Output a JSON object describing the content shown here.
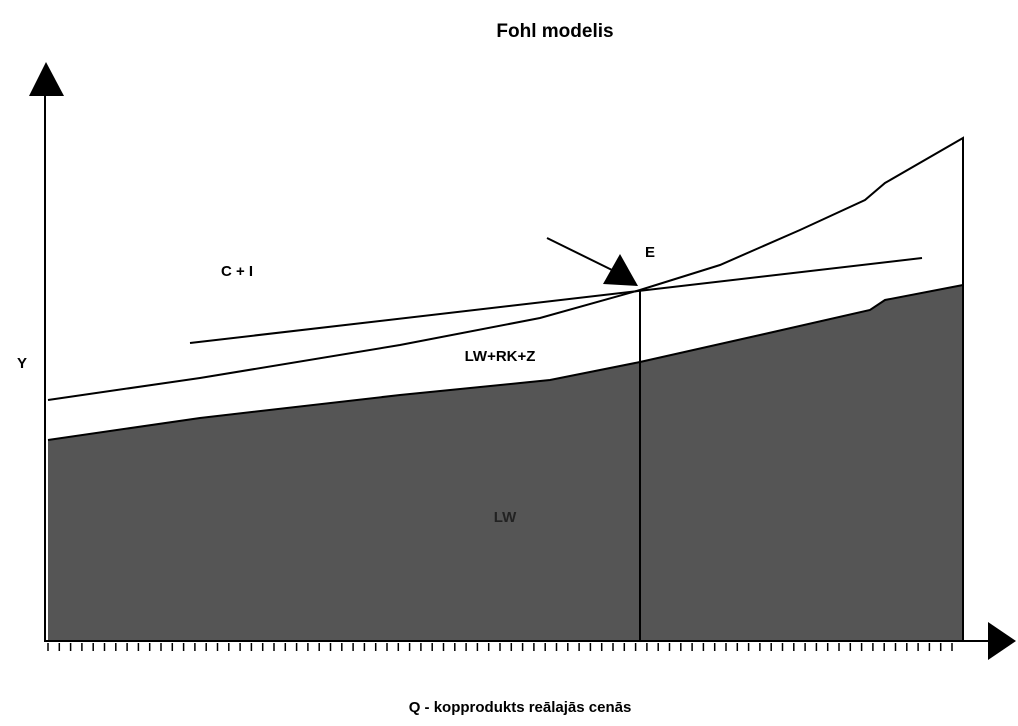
{
  "title": "Fohl modelis",
  "labels": {
    "y_axis": "Y",
    "x_axis": "Q - kopprodukts reālajās cenās",
    "ci": "C + I",
    "e": "E",
    "lwrkz": "LW+RK+Z",
    "lw": "LW"
  }
}
